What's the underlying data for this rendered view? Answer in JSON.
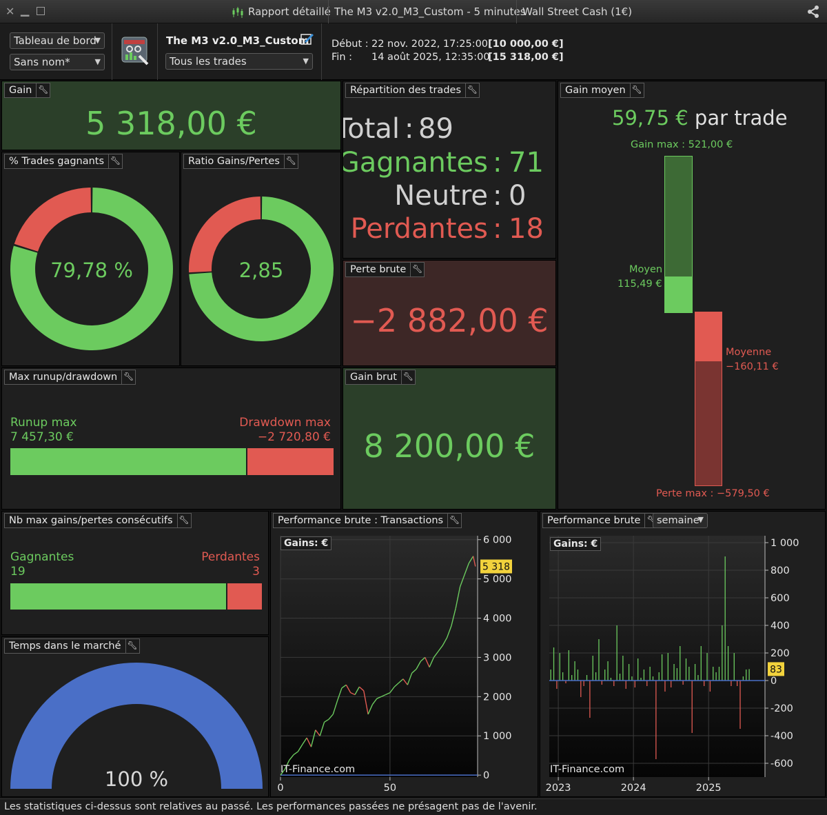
{
  "titlebar": {
    "tab_report": "Rapport détaillé",
    "tab_strategy": "The M3 v2.0_M3_Custom - 5 minutes",
    "tab_market": "Wall Street Cash (1€)"
  },
  "header": {
    "dashboard_select": "Tableau de bord",
    "name_select": "Sans nom*",
    "strategy_name": "The M3 v2.0_M3_Custom",
    "trades_filter": "Tous les trades",
    "start_label": "Début :",
    "start_date": "22 nov. 2022, 17:25:00",
    "start_value": "[10 000,00 €]",
    "end_label": "Fin :",
    "end_date": "14 août 2025, 12:35:00",
    "end_value": "[15 318,00 €]"
  },
  "gain": {
    "title": "Gain",
    "value": "5 318,00 €"
  },
  "win_pct": {
    "title": "% Trades gagnants",
    "value": "79,78 %",
    "fraction": 0.7978
  },
  "ratio": {
    "title": "Ratio Gains/Pertes",
    "value": "2,85",
    "fraction": 0.7403
  },
  "distribution": {
    "title": "Répartition des trades",
    "total_label": "Total",
    "total": "89",
    "win_label": "Gagnantes",
    "win": "71",
    "neutral_label": "Neutre",
    "neutral": "0",
    "loss_label": "Perdantes",
    "loss": "18",
    "sep": ":"
  },
  "gross_loss": {
    "title": "Perte brute",
    "value": "−2 882,00 €"
  },
  "gross_gain": {
    "title": "Gain brut",
    "value": "8 200,00 €"
  },
  "avg_gain": {
    "title": "Gain moyen",
    "value": "59,75 €",
    "suffix": "par trade",
    "max_gain_label": "Gain max : 521,00 €",
    "avg_win_label": "Moyen",
    "avg_win_value": "115,49 €",
    "avg_loss_label": "Moyenne",
    "avg_loss_value": "−160,11 €",
    "max_loss_label": "Perte max : −579,50 €"
  },
  "runup": {
    "title": "Max runup/drawdown",
    "runup_label": "Runup max",
    "runup_value": "7 457,30 €",
    "drawdown_label": "Drawdown max",
    "drawdown_value": "−2 720,80 €",
    "runup_fraction": 0.7327
  },
  "consecutive": {
    "title": "Nb max gains/pertes consécutifs",
    "win_label": "Gagnantes",
    "win_value": "19",
    "loss_label": "Perdantes",
    "loss_value": "3",
    "win_fraction": 0.8636
  },
  "market_time": {
    "title": "Temps dans le marché",
    "value": "100 %",
    "fraction": 1.0
  },
  "perf_trades": {
    "title": "Performance brute : Transactions",
    "gains_label": "Gains: €",
    "watermark": "IT-Finance.com"
  },
  "perf_week": {
    "title": "Performance brute",
    "period_select": "semaine",
    "gains_label": "Gains: €",
    "watermark": "IT-Finance.com"
  },
  "footer": {
    "disclaimer": "Les statistiques ci-dessus sont relatives au passé. Les performances passées ne présagent pas de l'avenir."
  },
  "colors": {
    "green": "#6ccb5f",
    "red": "#e15a52",
    "blue": "#4a6fc7",
    "gain_bg": "#2b3f29",
    "loss_bg": "#3d2726"
  },
  "chart_data": [
    {
      "type": "line",
      "title": "Performance brute : Transactions",
      "ylabel": "Gains: €",
      "x": [
        0,
        2,
        4,
        6,
        8,
        10,
        12,
        14,
        16,
        18,
        20,
        22,
        24,
        26,
        28,
        30,
        32,
        34,
        36,
        38,
        40,
        42,
        44,
        46,
        48,
        50,
        52,
        54,
        56,
        58,
        60,
        62,
        64,
        66,
        68,
        70,
        72,
        74,
        76,
        78,
        80,
        82,
        84,
        86,
        88,
        89
      ],
      "values": [
        0,
        150,
        380,
        520,
        600,
        780,
        950,
        720,
        1150,
        1000,
        1350,
        1420,
        1550,
        1900,
        2220,
        2300,
        2100,
        2050,
        2250,
        2150,
        1550,
        1800,
        1950,
        2000,
        2050,
        2100,
        2250,
        2350,
        2450,
        2300,
        2600,
        2700,
        2900,
        3000,
        2750,
        3000,
        3150,
        3300,
        3500,
        3800,
        4250,
        4800,
        5100,
        5400,
        5580,
        5318
      ],
      "xticks": [
        0,
        50
      ],
      "yticks": [
        0,
        1000,
        2000,
        3000,
        4000,
        5000,
        6000
      ],
      "ytick_labels": [
        "0",
        "1 000",
        "2 000",
        "3 000",
        "4 000",
        "5 000",
        "6 000"
      ],
      "xlim": [
        0,
        90
      ],
      "ylim": [
        -50,
        6100
      ],
      "last_value_label": "5 318"
    },
    {
      "type": "bar",
      "title": "Performance brute",
      "ylabel": "Gains: €",
      "xticks": [
        2023,
        2024,
        2025
      ],
      "yticks": [
        -600,
        -400,
        -200,
        0,
        200,
        400,
        600,
        800,
        1000
      ],
      "ytick_labels": [
        "-600",
        "-400",
        "-200",
        "0",
        "200",
        "400",
        "600",
        "800",
        "1 000"
      ],
      "xlim": [
        2022.88,
        2025.75
      ],
      "ylim": [
        -700,
        1050
      ],
      "last_value_label": "83",
      "x": [
        2022.9,
        2022.94,
        2022.98,
        2023.02,
        2023.06,
        2023.1,
        2023.14,
        2023.18,
        2023.22,
        2023.26,
        2023.3,
        2023.34,
        2023.38,
        2023.42,
        2023.46,
        2023.5,
        2023.54,
        2023.58,
        2023.62,
        2023.66,
        2023.7,
        2023.74,
        2023.78,
        2023.82,
        2023.86,
        2023.9,
        2023.94,
        2023.98,
        2024.02,
        2024.06,
        2024.1,
        2024.14,
        2024.18,
        2024.22,
        2024.26,
        2024.3,
        2024.34,
        2024.38,
        2024.42,
        2024.46,
        2024.5,
        2024.54,
        2024.58,
        2024.62,
        2024.66,
        2024.7,
        2024.74,
        2024.78,
        2024.82,
        2024.86,
        2024.9,
        2024.94,
        2024.98,
        2025.02,
        2025.06,
        2025.1,
        2025.14,
        2025.18,
        2025.22,
        2025.26,
        2025.3,
        2025.34,
        2025.38,
        2025.42,
        2025.46,
        2025.5,
        2025.54
      ],
      "values": [
        80,
        240,
        -60,
        200,
        60,
        -20,
        220,
        40,
        140,
        80,
        -120,
        -40,
        40,
        -270,
        180,
        60,
        300,
        -30,
        80,
        140,
        20,
        -40,
        400,
        50,
        180,
        -60,
        120,
        30,
        -50,
        160,
        20,
        80,
        -40,
        100,
        30,
        -570,
        60,
        190,
        -80,
        200,
        -50,
        120,
        90,
        250,
        -30,
        160,
        100,
        -380,
        120,
        40,
        250,
        -40,
        200,
        -80,
        100,
        60,
        100,
        400,
        900,
        250,
        -40,
        200,
        -40,
        -350,
        30,
        80,
        83
      ]
    }
  ]
}
